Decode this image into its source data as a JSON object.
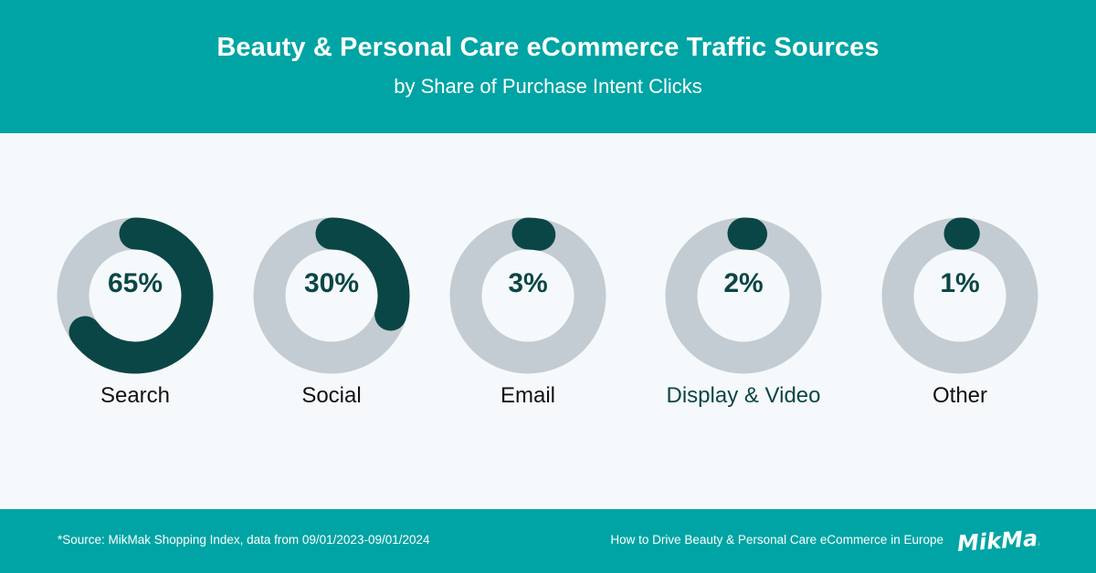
{
  "header": {
    "title": "Beauty & Personal Care eCommerce Traffic Sources",
    "subtitle": "by Share of Purchase Intent Clicks"
  },
  "colors": {
    "accent": "#00a4a4",
    "dark": "#0b4646",
    "track": "#c3ccd2",
    "background": "#f6f9fb"
  },
  "chart_data": {
    "type": "pie",
    "variant": "donut-small-multiples",
    "title": "Beauty & Personal Care eCommerce Traffic Sources",
    "subtitle": "by Share of Purchase Intent Clicks",
    "unit": "%",
    "categories": [
      "Search",
      "Social",
      "Email",
      "Display & Video",
      "Other"
    ],
    "values": [
      65,
      30,
      3,
      2,
      1
    ],
    "labels": [
      "65%",
      "30%",
      "3%",
      "2%",
      "1%"
    ]
  },
  "footer": {
    "source": "*Source: MikMak Shopping Index, data from 09/01/2023-09/01/2024",
    "report": "How to Drive Beauty & Personal Care eCommerce in Europe",
    "logo_text": "MikMak"
  }
}
